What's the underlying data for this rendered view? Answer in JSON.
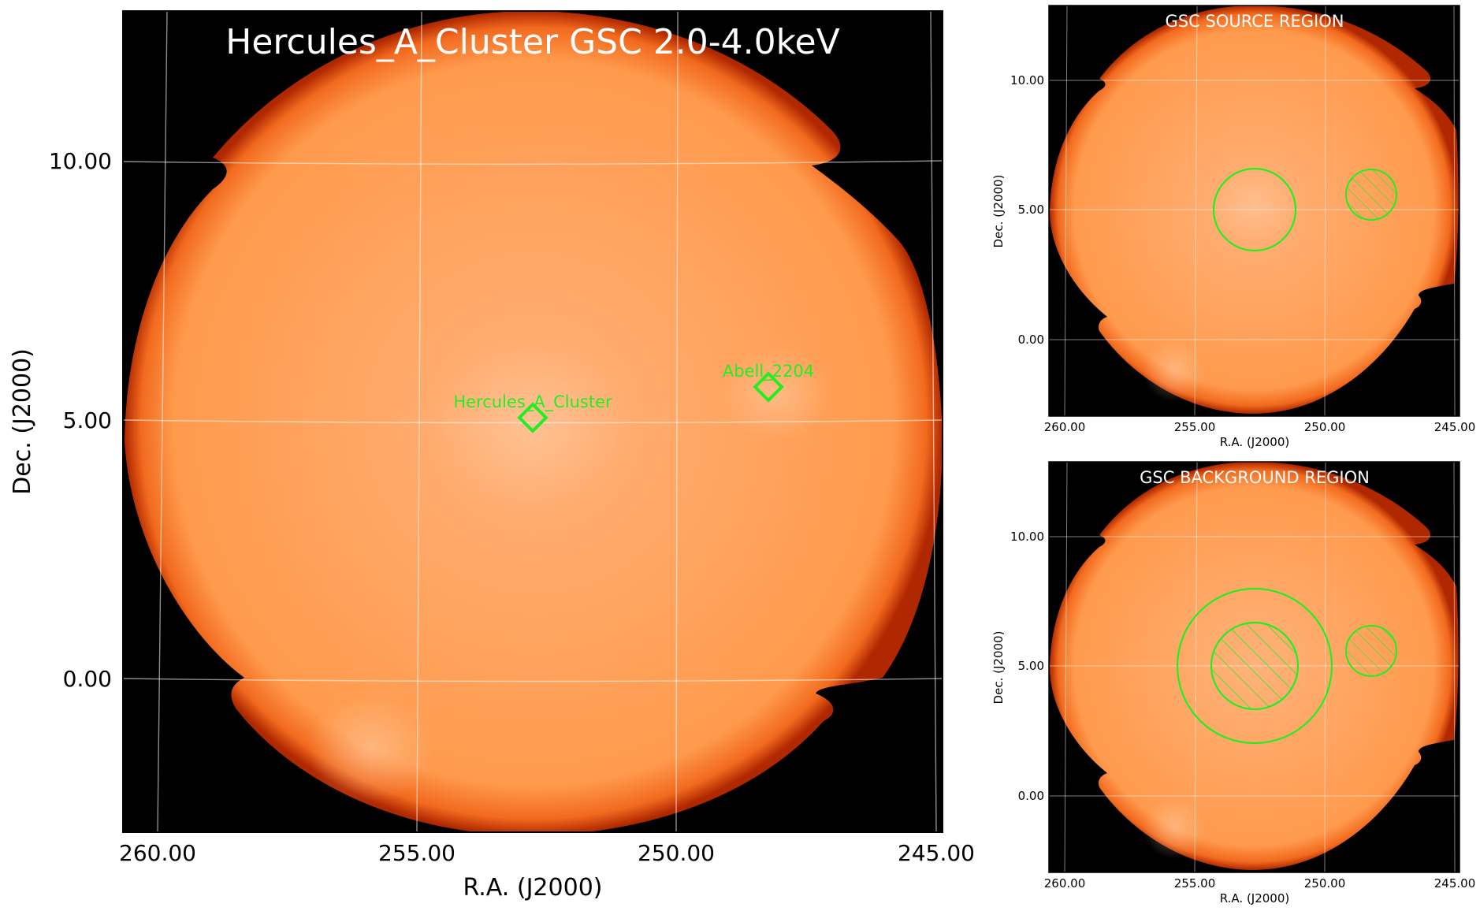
{
  "main_panel": {
    "title": "Hercules_A_Cluster GSC 2.0-4.0keV",
    "xlabel": "R.A. (J2000)",
    "ylabel": "Dec. (J2000)",
    "x_ticks": [
      "260.00",
      "255.00",
      "250.00",
      "245.00"
    ],
    "y_ticks": [
      "10.00",
      "5.00",
      "0.00"
    ],
    "sources": [
      {
        "name": "Hercules_A_Cluster",
        "ra": 252.6,
        "dec": 5.0
      },
      {
        "name": "Abell_2204",
        "ra": 248.2,
        "dec": 5.6
      }
    ]
  },
  "source_panel": {
    "title": "GSC SOURCE REGION",
    "xlabel": "R.A. (J2000)",
    "ylabel": "Dec. (J2000)",
    "x_ticks": [
      "260.00",
      "255.00",
      "250.00",
      "245.00"
    ],
    "y_ticks": [
      "10.00",
      "5.00",
      "0.00"
    ]
  },
  "background_panel": {
    "title": "GSC BACKGROUND REGION",
    "xlabel": "R.A. (J2000)",
    "ylabel": "Dec. (J2000)",
    "x_ticks": [
      "260.00",
      "255.00",
      "250.00",
      "245.00"
    ],
    "y_ticks": [
      "10.00",
      "5.00",
      "0.00"
    ]
  },
  "colors": {
    "image_fill": "#ff9a4d",
    "image_edge": "#c83000",
    "background": "#000000",
    "region": "#22ee22",
    "grid": "#ffffff"
  }
}
